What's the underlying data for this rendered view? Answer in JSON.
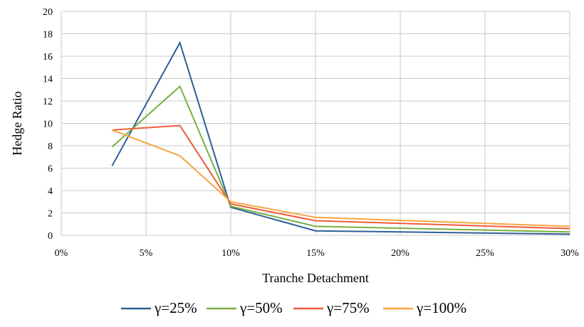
{
  "chart_data": {
    "type": "line",
    "title": "",
    "xlabel": "Tranche Detachment",
    "ylabel": "Hedge Ratio",
    "xlim": [
      0,
      30
    ],
    "ylim": [
      0,
      20
    ],
    "xticks": [
      0,
      5,
      10,
      15,
      20,
      25,
      30
    ],
    "xtick_labels": [
      "0%",
      "5%",
      "10%",
      "15%",
      "20%",
      "25%",
      "30%"
    ],
    "yticks": [
      0,
      2,
      4,
      6,
      8,
      10,
      12,
      14,
      16,
      18,
      20
    ],
    "ytick_labels": [
      "0",
      "2",
      "4",
      "6",
      "8",
      "10",
      "12",
      "14",
      "16",
      "18",
      "20"
    ],
    "grid": true,
    "legend_position": "bottom",
    "x": [
      3,
      7,
      10,
      15,
      30
    ],
    "series": [
      {
        "name": "γ=25%",
        "color": "#2e5f96",
        "values": [
          6.2,
          17.2,
          2.5,
          0.4,
          0.1
        ]
      },
      {
        "name": "γ=50%",
        "color": "#79b041",
        "values": [
          7.9,
          13.3,
          2.6,
          0.8,
          0.3
        ]
      },
      {
        "name": "γ=75%",
        "color": "#ee5b3a",
        "values": [
          9.4,
          9.8,
          2.8,
          1.3,
          0.6
        ]
      },
      {
        "name": "γ=100%",
        "color": "#f7a540",
        "values": [
          9.4,
          7.1,
          3.0,
          1.6,
          0.8
        ]
      }
    ]
  }
}
